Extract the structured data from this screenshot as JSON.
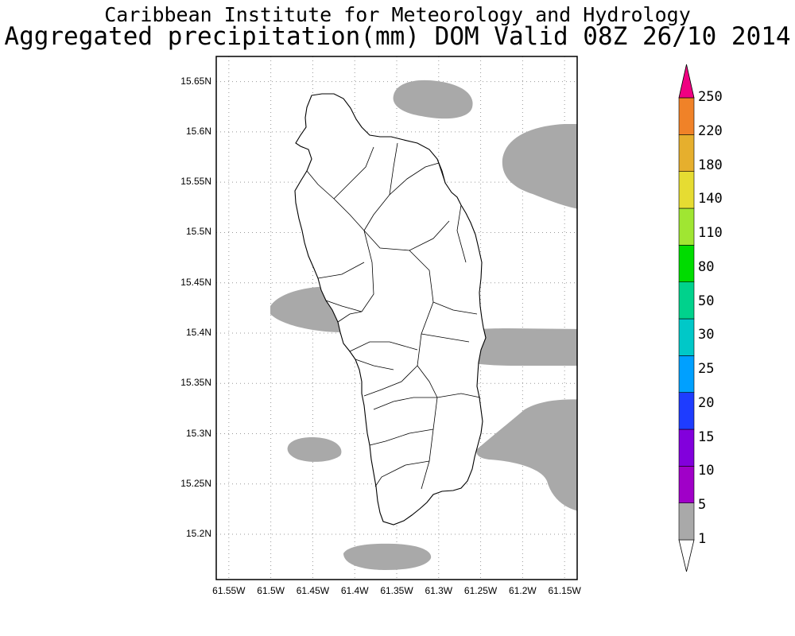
{
  "header": {
    "line1": "Caribbean Institute for Meteorology and Hydrology",
    "line2": "Aggregated precipitation(mm) DOM Valid 08Z 26/10 2014"
  },
  "map": {
    "lon_range": [
      61.565,
      61.135
    ],
    "lat_range": [
      15.155,
      15.675
    ],
    "lat_ticks": [
      {
        "value": 15.65,
        "label": "15.65N"
      },
      {
        "value": 15.6,
        "label": "15.6N"
      },
      {
        "value": 15.55,
        "label": "15.55N"
      },
      {
        "value": 15.5,
        "label": "15.5N"
      },
      {
        "value": 15.45,
        "label": "15.45N"
      },
      {
        "value": 15.4,
        "label": "15.4N"
      },
      {
        "value": 15.35,
        "label": "15.35N"
      },
      {
        "value": 15.3,
        "label": "15.3N"
      },
      {
        "value": 15.25,
        "label": "15.25N"
      },
      {
        "value": 15.2,
        "label": "15.2N"
      }
    ],
    "lon_ticks": [
      {
        "value": 61.55,
        "label": "61.55W"
      },
      {
        "value": 61.5,
        "label": "61.5W"
      },
      {
        "value": 61.45,
        "label": "61.45W"
      },
      {
        "value": 61.4,
        "label": "61.4W"
      },
      {
        "value": 61.35,
        "label": "61.35W"
      },
      {
        "value": 61.3,
        "label": "61.3W"
      },
      {
        "value": 61.25,
        "label": "61.25W"
      },
      {
        "value": 61.2,
        "label": "61.2W"
      },
      {
        "value": 61.15,
        "label": "61.15W"
      }
    ],
    "grid": true,
    "precip_shade_color": "#a9a9a9"
  },
  "colorbar": {
    "levels": [
      "1",
      "5",
      "10",
      "15",
      "20",
      "25",
      "30",
      "50",
      "80",
      "110",
      "140",
      "180",
      "220",
      "250"
    ],
    "colors": [
      "#a9a9a9",
      "#a000c8",
      "#8200dc",
      "#1e3cff",
      "#00a0ff",
      "#00c8c8",
      "#00d28c",
      "#00dc00",
      "#a0e632",
      "#e6dc32",
      "#e6af2d",
      "#f08228",
      "#fa3c3c",
      "#f00082"
    ]
  }
}
